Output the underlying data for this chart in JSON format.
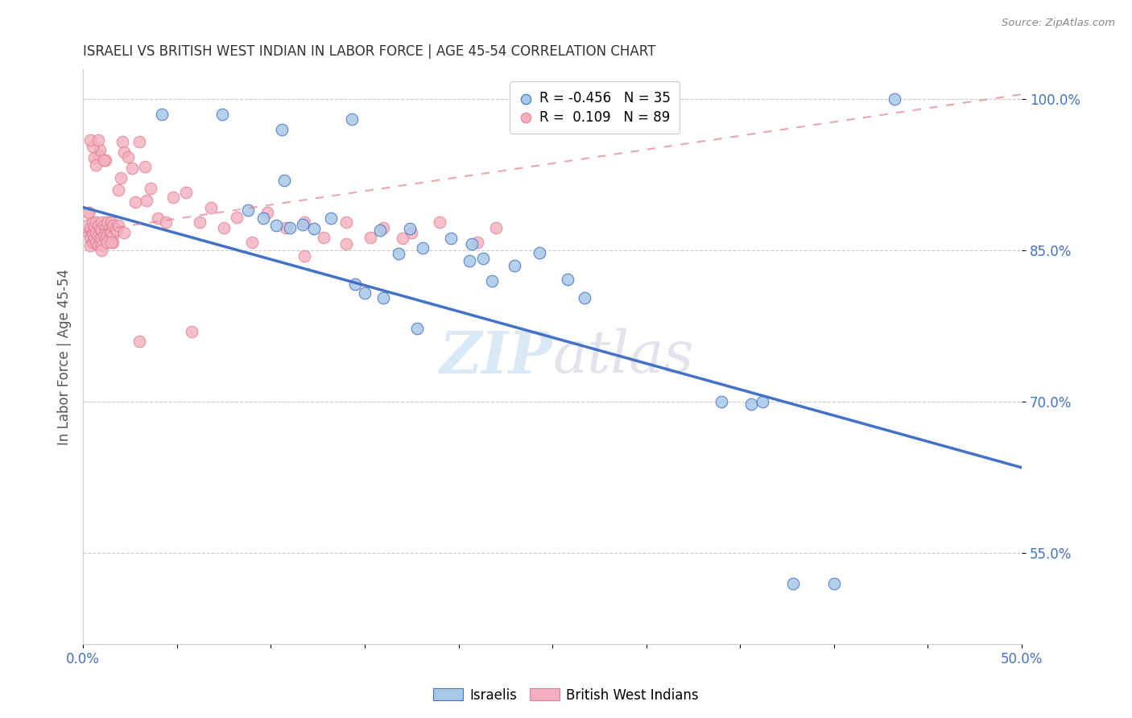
{
  "title": "ISRAELI VS BRITISH WEST INDIAN IN LABOR FORCE | AGE 45-54 CORRELATION CHART",
  "source": "Source: ZipAtlas.com",
  "ylabel": "In Labor Force | Age 45-54",
  "watermark_zip": "ZIP",
  "watermark_atlas": "atlas",
  "xlim": [
    0.0,
    0.5
  ],
  "ylim": [
    0.46,
    1.03
  ],
  "xtick_positions": [
    0.0,
    0.05,
    0.1,
    0.15,
    0.2,
    0.25,
    0.3,
    0.35,
    0.4,
    0.45,
    0.5
  ],
  "xtick_labels": [
    "0.0%",
    "",
    "",
    "",
    "",
    "",
    "",
    "",
    "",
    "",
    "50.0%"
  ],
  "ytick_positions": [
    0.55,
    0.7,
    0.85,
    1.0
  ],
  "ytick_labels": [
    "55.0%",
    "70.0%",
    "85.0%",
    "100.0%"
  ],
  "grid_lines": [
    0.55,
    0.7,
    0.85,
    1.0
  ],
  "israeli_R": -0.456,
  "israeli_N": 35,
  "bwi_R": 0.109,
  "bwi_N": 89,
  "israeli_scatter_color": "#a8c8e8",
  "israeli_edge_color": "#4472c4",
  "bwi_scatter_color": "#f4b0c0",
  "bwi_edge_color": "#e08090",
  "israeli_line_color": "#4472c4",
  "bwi_line_color": "#e08090",
  "israeli_line_x0": 0.0,
  "israeli_line_y0": 0.893,
  "israeli_line_x1": 0.5,
  "israeli_line_y1": 0.635,
  "bwi_line_x0": 0.0,
  "bwi_line_y0": 0.868,
  "bwi_line_x1": 0.5,
  "bwi_line_y1": 1.005,
  "legend_R_israeli": "R = -0.456",
  "legend_N_israeli": "N = 35",
  "legend_R_bwi": "R =  0.109",
  "legend_N_bwi": "N = 89",
  "legend_label_israeli": "Israelis",
  "legend_label_bwi": "British West Indians",
  "israeli_x": [
    0.042,
    0.074,
    0.106,
    0.143,
    0.107,
    0.088,
    0.096,
    0.103,
    0.11,
    0.117,
    0.123,
    0.132,
    0.158,
    0.168,
    0.174,
    0.181,
    0.196,
    0.207,
    0.213,
    0.145,
    0.16,
    0.243,
    0.258,
    0.267,
    0.178,
    0.34,
    0.356,
    0.362,
    0.378,
    0.4,
    0.432,
    0.206,
    0.218,
    0.23,
    0.15
  ],
  "israeli_y": [
    0.985,
    0.985,
    0.97,
    0.98,
    0.92,
    0.89,
    0.882,
    0.875,
    0.873,
    0.876,
    0.872,
    0.882,
    0.87,
    0.847,
    0.872,
    0.853,
    0.862,
    0.857,
    0.842,
    0.817,
    0.803,
    0.848,
    0.822,
    0.803,
    0.773,
    0.7,
    0.698,
    0.7,
    0.52,
    0.52,
    1.0,
    0.84,
    0.82,
    0.835,
    0.808
  ],
  "bwi_x_dense": [
    0.002,
    0.003,
    0.003,
    0.004,
    0.004,
    0.004,
    0.005,
    0.005,
    0.005,
    0.006,
    0.006,
    0.007,
    0.007,
    0.007,
    0.008,
    0.008,
    0.008,
    0.009,
    0.009,
    0.01,
    0.01,
    0.01,
    0.01,
    0.011,
    0.011,
    0.012,
    0.012,
    0.013,
    0.013,
    0.014,
    0.014,
    0.015,
    0.015,
    0.016,
    0.016,
    0.017,
    0.018,
    0.019,
    0.02,
    0.021,
    0.022,
    0.024,
    0.026,
    0.028,
    0.03,
    0.033,
    0.036,
    0.04,
    0.044,
    0.048,
    0.055,
    0.062,
    0.068,
    0.075,
    0.082,
    0.09,
    0.098,
    0.108,
    0.118,
    0.128,
    0.14,
    0.153,
    0.03,
    0.058,
    0.16,
    0.175,
    0.19,
    0.21,
    0.22,
    0.17,
    0.14,
    0.118,
    0.034,
    0.019,
    0.008,
    0.006,
    0.012,
    0.009,
    0.007,
    0.005,
    0.004,
    0.016,
    0.022,
    0.01,
    0.013,
    0.015,
    0.008,
    0.011,
    0.003
  ],
  "bwi_y_dense": [
    0.875,
    0.868,
    0.888,
    0.872,
    0.862,
    0.855,
    0.878,
    0.867,
    0.858,
    0.874,
    0.862,
    0.878,
    0.868,
    0.858,
    0.875,
    0.865,
    0.856,
    0.872,
    0.862,
    0.878,
    0.87,
    0.862,
    0.855,
    0.875,
    0.865,
    0.872,
    0.862,
    0.878,
    0.865,
    0.872,
    0.862,
    0.878,
    0.868,
    0.875,
    0.865,
    0.872,
    0.87,
    0.875,
    0.922,
    0.958,
    0.948,
    0.943,
    0.932,
    0.898,
    0.958,
    0.933,
    0.912,
    0.882,
    0.878,
    0.903,
    0.908,
    0.878,
    0.893,
    0.873,
    0.883,
    0.858,
    0.888,
    0.873,
    0.878,
    0.863,
    0.878,
    0.863,
    0.76,
    0.77,
    0.873,
    0.868,
    0.878,
    0.858,
    0.873,
    0.862,
    0.857,
    0.845,
    0.9,
    0.91,
    0.945,
    0.942,
    0.94,
    0.95,
    0.935,
    0.953,
    0.96,
    0.858,
    0.868,
    0.85,
    0.858,
    0.858,
    0.96,
    0.94,
    0.888
  ]
}
